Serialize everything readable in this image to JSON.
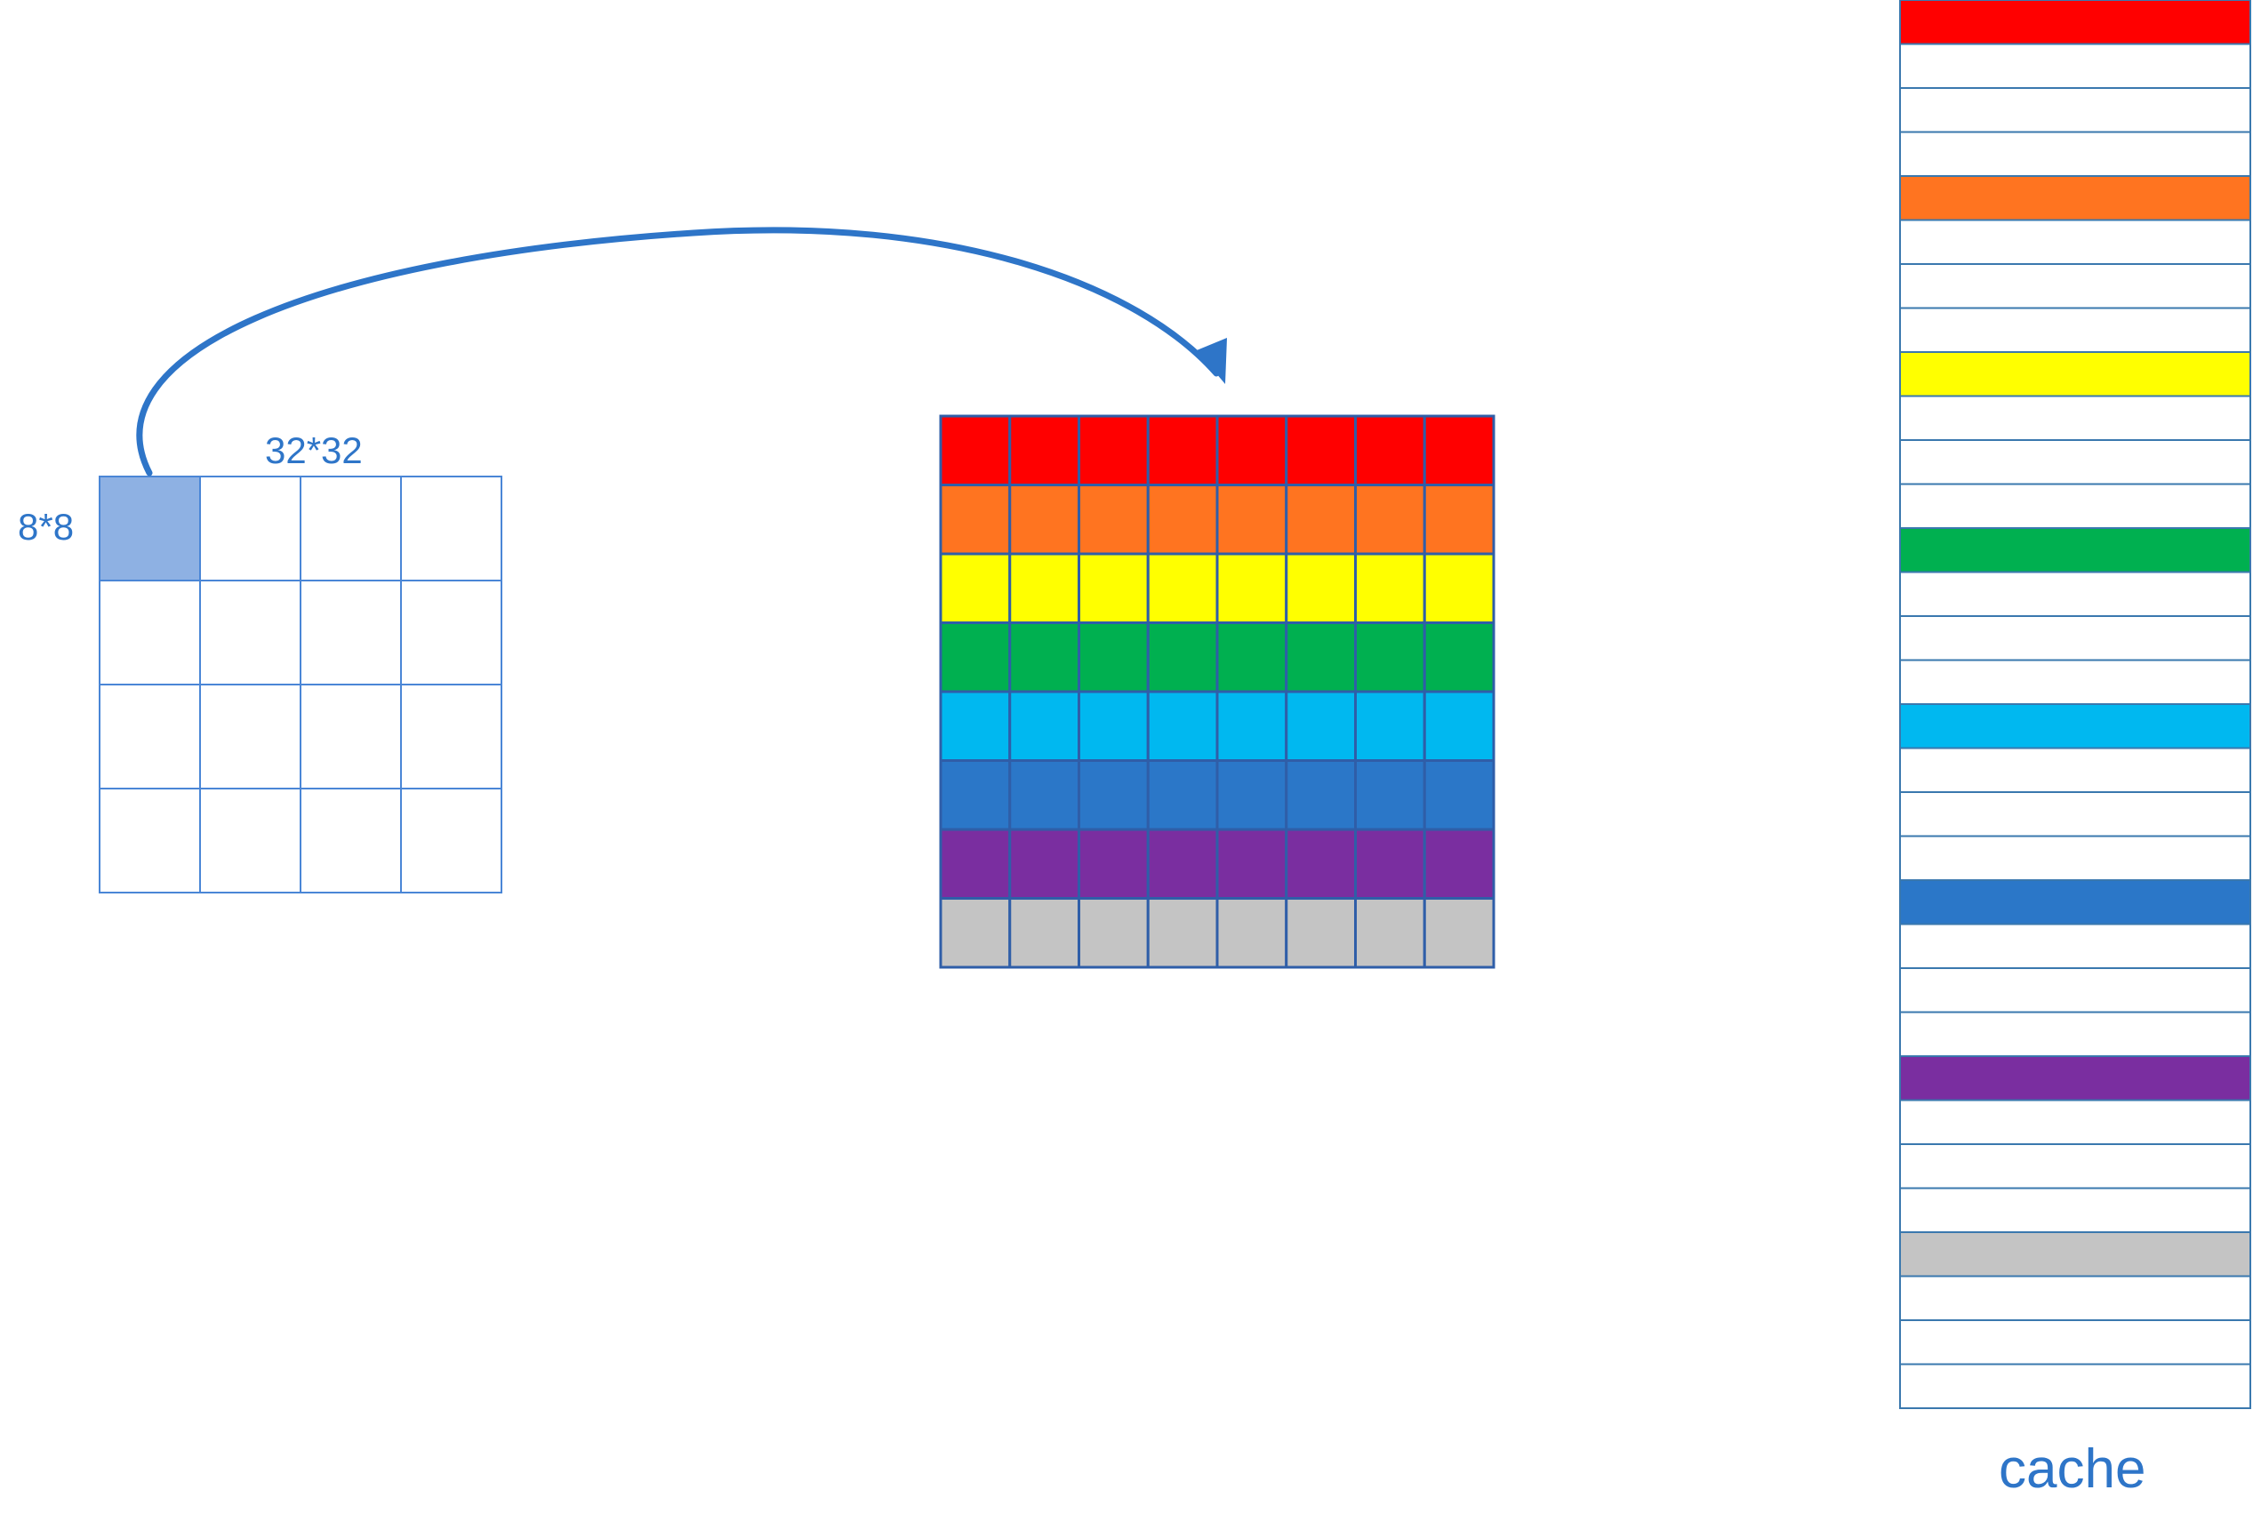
{
  "labels": {
    "block_size": "8*8",
    "matrix_size": "32*32",
    "cache": "cache"
  },
  "matrix_grid": {
    "rows": 4,
    "cols": 4,
    "highlighted_cell": [
      0,
      0
    ],
    "highlight_color": "#8EB1E3",
    "line_color": "#4A86D6"
  },
  "block": {
    "rows": 8,
    "cols": 8,
    "border_color": "#2F5EA8",
    "row_colors": [
      "#FF0000",
      "#FF7420",
      "#FFFF00",
      "#00B050",
      "#00B8F0",
      "#2B77C8",
      "#7A2EA0",
      "#C4C4C4"
    ]
  },
  "cache": {
    "line_count": 32,
    "lines_per_row": 4,
    "border_color": "#3A78AE",
    "filled_colors": [
      "#FF0000",
      "#FF7420",
      "#FFFF00",
      "#00B050",
      "#00B8F0",
      "#2B77C8",
      "#7A2EA0",
      "#C4C4C4"
    ]
  },
  "arrow": {
    "color": "#2E75C8"
  }
}
